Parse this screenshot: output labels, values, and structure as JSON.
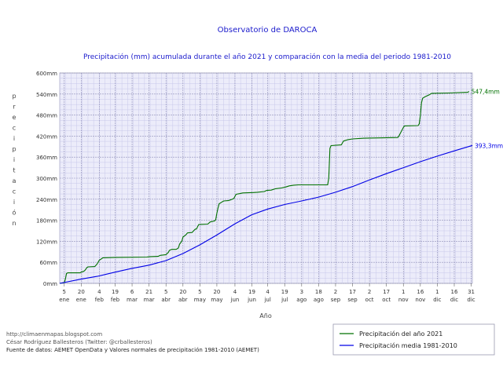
{
  "chart_data": {
    "type": "line",
    "title": "Observatorio de DAROCA",
    "subtitle": "Precipitación (mm) acumulada durante el año 2021 y comparación con la media del periodo 1981-2010",
    "xlabel": "Año",
    "ylabel": "precipitación",
    "ylim": [
      0,
      600
    ],
    "y_unit": "mm",
    "y_ticks": [
      0,
      60,
      120,
      180,
      240,
      300,
      360,
      420,
      480,
      540,
      600
    ],
    "x_ticks": [
      {
        "day": 5,
        "label_top": "5",
        "label_bottom": "ene"
      },
      {
        "day": 20,
        "label_top": "20",
        "label_bottom": "ene"
      },
      {
        "day": 36,
        "label_top": "4",
        "label_bottom": "feb"
      },
      {
        "day": 50,
        "label_top": "19",
        "label_bottom": "feb"
      },
      {
        "day": 65,
        "label_top": "6",
        "label_bottom": "mar"
      },
      {
        "day": 80,
        "label_top": "21",
        "label_bottom": "mar"
      },
      {
        "day": 95,
        "label_top": "5",
        "label_bottom": "abr"
      },
      {
        "day": 110,
        "label_top": "20",
        "label_bottom": "abr"
      },
      {
        "day": 125,
        "label_top": "5",
        "label_bottom": "may"
      },
      {
        "day": 140,
        "label_top": "20",
        "label_bottom": "may"
      },
      {
        "day": 156,
        "label_top": "4",
        "label_bottom": "jun"
      },
      {
        "day": 171,
        "label_top": "19",
        "label_bottom": "jun"
      },
      {
        "day": 185,
        "label_top": "4",
        "label_bottom": "jul"
      },
      {
        "day": 200,
        "label_top": "19",
        "label_bottom": "jul"
      },
      {
        "day": 215,
        "label_top": "3",
        "label_bottom": "ago"
      },
      {
        "day": 230,
        "label_top": "18",
        "label_bottom": "ago"
      },
      {
        "day": 245,
        "label_top": "2",
        "label_bottom": "sep"
      },
      {
        "day": 260,
        "label_top": "17",
        "label_bottom": "sep"
      },
      {
        "day": 275,
        "label_top": "2",
        "label_bottom": "oct"
      },
      {
        "day": 290,
        "label_top": "17",
        "label_bottom": "oct"
      },
      {
        "day": 305,
        "label_top": "1",
        "label_bottom": "nov"
      },
      {
        "day": 320,
        "label_top": "16",
        "label_bottom": "nov"
      },
      {
        "day": 335,
        "label_top": "1",
        "label_bottom": "dic"
      },
      {
        "day": 350,
        "label_top": "16",
        "label_bottom": "dic"
      },
      {
        "day": 365,
        "label_top": "31",
        "label_bottom": "dic"
      }
    ],
    "xlim": [
      1,
      366
    ],
    "grid": true,
    "legend_position": "bottom-right",
    "series": [
      {
        "name": "Precipitación del año 2021",
        "color": "#007000",
        "end_label": "547,4mm",
        "points": [
          [
            1,
            0
          ],
          [
            5,
            2
          ],
          [
            6,
            12
          ],
          [
            7,
            28
          ],
          [
            8,
            30
          ],
          [
            19,
            30
          ],
          [
            20,
            32
          ],
          [
            22,
            34
          ],
          [
            23,
            36
          ],
          [
            24,
            40
          ],
          [
            25,
            45
          ],
          [
            26,
            47
          ],
          [
            32,
            48
          ],
          [
            34,
            55
          ],
          [
            36,
            66
          ],
          [
            38,
            70
          ],
          [
            39,
            73
          ],
          [
            50,
            74
          ],
          [
            78,
            75
          ],
          [
            80,
            76
          ],
          [
            88,
            77
          ],
          [
            90,
            80
          ],
          [
            95,
            82
          ],
          [
            97,
            88
          ],
          [
            98,
            94
          ],
          [
            100,
            97
          ],
          [
            104,
            97
          ],
          [
            106,
            101
          ],
          [
            107,
            112
          ],
          [
            109,
            120
          ],
          [
            110,
            132
          ],
          [
            112,
            137
          ],
          [
            113,
            140
          ],
          [
            114,
            144
          ],
          [
            118,
            145
          ],
          [
            120,
            152
          ],
          [
            121,
            155
          ],
          [
            122,
            155
          ],
          [
            123,
            162
          ],
          [
            124,
            168
          ],
          [
            132,
            169
          ],
          [
            134,
            175
          ],
          [
            138,
            178
          ],
          [
            139,
            182
          ],
          [
            140,
            200
          ],
          [
            141,
            215
          ],
          [
            142,
            227
          ],
          [
            144,
            231
          ],
          [
            146,
            235
          ],
          [
            150,
            236
          ],
          [
            152,
            238
          ],
          [
            155,
            242
          ],
          [
            156,
            248
          ],
          [
            157,
            254
          ],
          [
            160,
            256
          ],
          [
            163,
            258
          ],
          [
            172,
            259
          ],
          [
            176,
            260
          ],
          [
            182,
            262
          ],
          [
            184,
            265
          ],
          [
            188,
            266
          ],
          [
            192,
            270
          ],
          [
            197,
            272
          ],
          [
            201,
            275
          ],
          [
            204,
            278
          ],
          [
            208,
            280
          ],
          [
            212,
            281
          ],
          [
            227,
            281
          ],
          [
            238,
            281
          ],
          [
            239,
            300
          ],
          [
            240,
            385
          ],
          [
            241,
            393
          ],
          [
            250,
            395
          ],
          [
            251,
            400
          ],
          [
            252,
            406
          ],
          [
            256,
            410
          ],
          [
            260,
            412
          ],
          [
            270,
            414
          ],
          [
            300,
            416
          ],
          [
            301,
            420
          ],
          [
            305,
            445
          ],
          [
            306,
            449
          ],
          [
            318,
            450
          ],
          [
            319,
            455
          ],
          [
            320,
            478
          ],
          [
            321,
            515
          ],
          [
            322,
            528
          ],
          [
            324,
            532
          ],
          [
            326,
            535
          ],
          [
            328,
            538
          ],
          [
            330,
            542
          ],
          [
            345,
            543
          ],
          [
            362,
            545
          ],
          [
            363,
            547.4
          ]
        ]
      },
      {
        "name": "Precipitación media 1981-2010",
        "color": "#0000e6",
        "end_label": "393,3mm",
        "points": [
          [
            1,
            0
          ],
          [
            20,
            12
          ],
          [
            34,
            20
          ],
          [
            50,
            32
          ],
          [
            64,
            42
          ],
          [
            80,
            52
          ],
          [
            95,
            65
          ],
          [
            110,
            85
          ],
          [
            125,
            110
          ],
          [
            140,
            138
          ],
          [
            156,
            170
          ],
          [
            171,
            196
          ],
          [
            185,
            212
          ],
          [
            200,
            225
          ],
          [
            215,
            235
          ],
          [
            230,
            246
          ],
          [
            245,
            260
          ],
          [
            260,
            276
          ],
          [
            275,
            295
          ],
          [
            290,
            313
          ],
          [
            305,
            330
          ],
          [
            320,
            347
          ],
          [
            335,
            363
          ],
          [
            350,
            378
          ],
          [
            366,
            393.3
          ]
        ]
      }
    ]
  },
  "footer": {
    "line1": "http://climaenmapas.blogspot.com",
    "line2": "César Rodríguez Ballesteros (Twitter: @crballesteros)",
    "line3": "Fuente de datos: AEMET OpenData y Valores normales de precipitación 1981-2010 (AEMET)"
  }
}
